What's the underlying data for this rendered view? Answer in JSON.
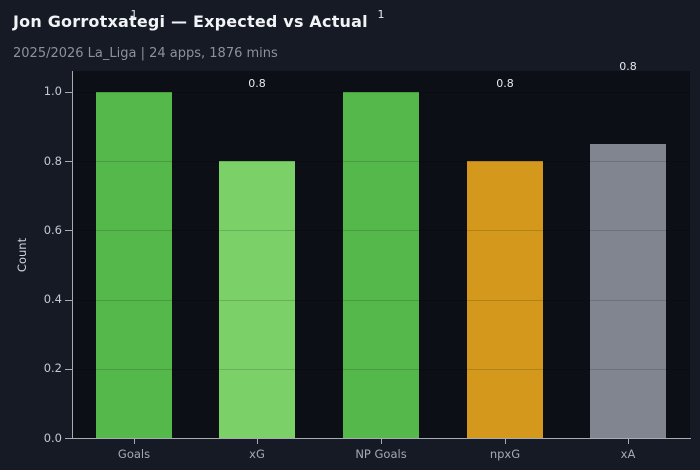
{
  "header": {
    "title": "Jon Gorrotxategi — Expected vs Actual",
    "subtitle": "2025/2026 La_Liga | 24 apps, 1876 mins"
  },
  "chart_data": {
    "type": "bar",
    "title": "Jon Gorrotxategi — Expected vs Actual",
    "subtitle": "2025/2026 La_Liga | 24 apps, 1876 mins",
    "xlabel": "",
    "ylabel": "Count",
    "categories": [
      "Goals",
      "xG",
      "NP Goals",
      "npxG",
      "xA"
    ],
    "values": [
      1.0,
      0.8,
      1.0,
      0.8,
      0.85
    ],
    "bar_value_labels": [
      "1",
      "0.8",
      "1",
      "0.8",
      "0.8"
    ],
    "bar_colors": [
      "#55b84b",
      "#7bd068",
      "#55b84b",
      "#d3981c",
      "#80858f"
    ],
    "ylim": [
      0,
      1.06
    ],
    "ytick_labels": [
      "0.0",
      "0.2",
      "0.4",
      "0.6",
      "0.8",
      "1.0"
    ],
    "grid": true,
    "legend": false,
    "colors": {
      "page_bg": "#161a24",
      "plot_bg": "#0c0f16",
      "spine": "#a6abb4",
      "grid_rgba": "rgba(0,0,0,0.15)",
      "ytick_label": "#c6c9cf",
      "xtick_label": "#a4a9b2",
      "value_label": "#e7e9ed",
      "title": "#f1f3f6",
      "subtitle": "#8c919b",
      "ylabel": "#ced2d8"
    }
  }
}
